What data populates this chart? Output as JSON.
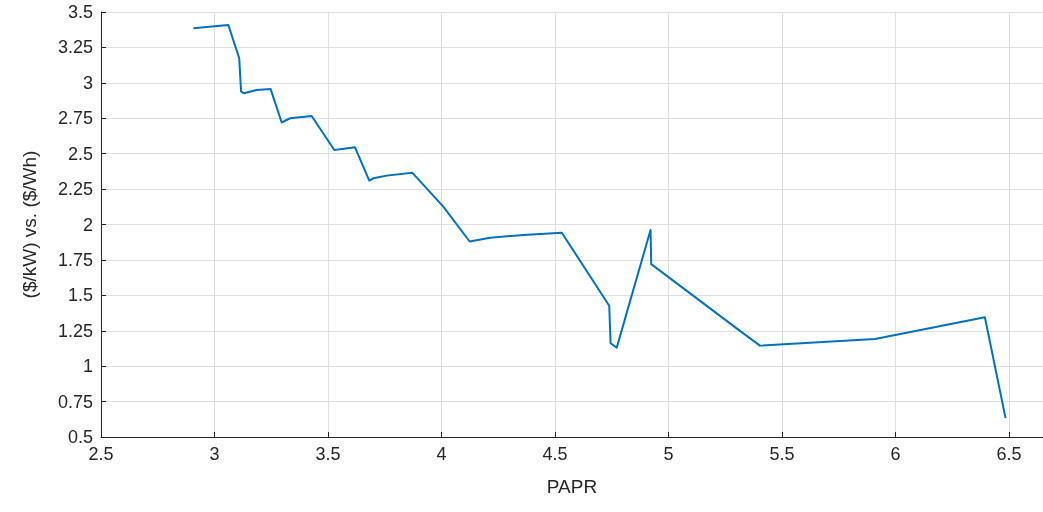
{
  "chart_data": {
    "type": "line",
    "xlabel": "PAPR",
    "ylabel": "($/kW) vs. ($/Wh)",
    "x": [
      2.907,
      3.061,
      3.109,
      3.117,
      3.13,
      3.186,
      3.247,
      3.296,
      3.333,
      3.428,
      3.528,
      3.619,
      3.682,
      3.7,
      3.759,
      3.871,
      4.008,
      4.124,
      4.214,
      4.361,
      4.53,
      4.739,
      4.745,
      4.772,
      4.921,
      4.924,
      5.315,
      5.403,
      5.91,
      6.394,
      6.485
    ],
    "series": [
      {
        "color": "#0072bd",
        "values": [
          3.385,
          3.408,
          3.173,
          2.94,
          2.926,
          2.95,
          2.957,
          2.72,
          2.75,
          2.766,
          2.526,
          2.545,
          2.31,
          2.326,
          2.345,
          2.366,
          2.126,
          1.88,
          1.907,
          1.926,
          1.942,
          1.427,
          1.162,
          1.131,
          1.961,
          1.72,
          1.249,
          1.145,
          1.192,
          1.345,
          0.633
        ]
      }
    ],
    "xlim": [
      2.5,
      6.65
    ],
    "xticks": [
      2.5,
      3,
      3.5,
      4,
      4.5,
      5,
      5.5,
      6,
      6.5
    ],
    "ylim": [
      0.5,
      3.5
    ],
    "yticks": [
      0.5,
      0.75,
      1,
      1.25,
      1.5,
      1.75,
      2,
      2.25,
      2.5,
      2.75,
      3,
      3.25,
      3.5
    ],
    "grid": true,
    "marker": "none",
    "line_style": "solid"
  }
}
